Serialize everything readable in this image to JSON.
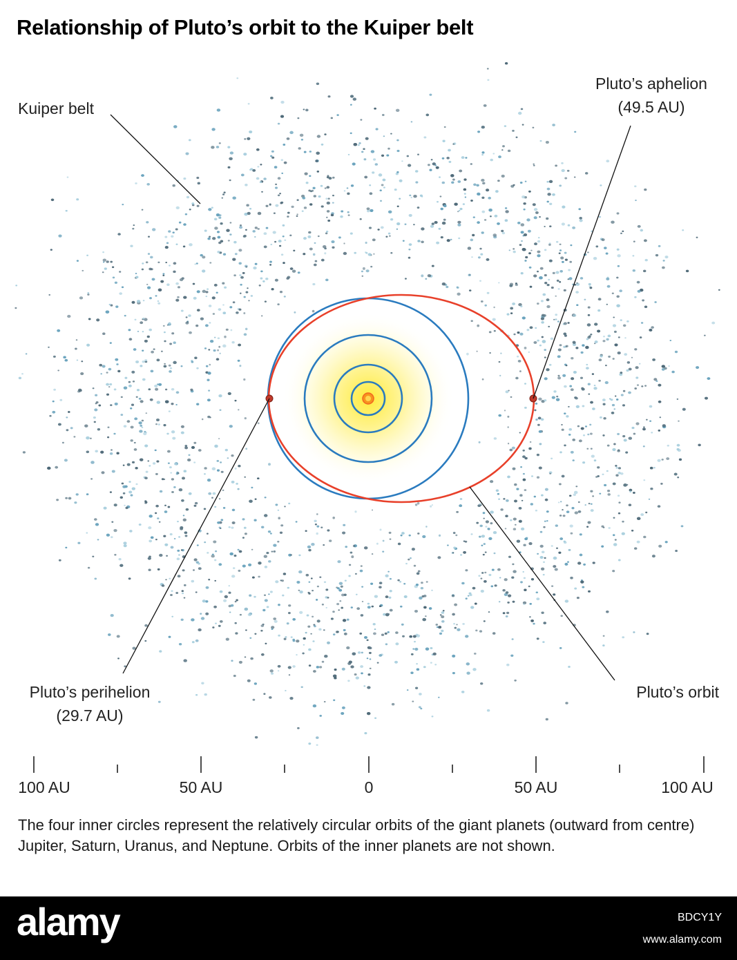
{
  "title": "Relationship of Pluto’s orbit to the Kuiper belt",
  "labels": {
    "kuiper_belt": "Kuiper belt",
    "aphelion_line1": "Pluto’s aphelion",
    "aphelion_line2": "(49.5 AU)",
    "perihelion_line1": "Pluto’s perihelion",
    "perihelion_line2": "(29.7 AU)",
    "orbit": "Pluto’s orbit"
  },
  "scale": {
    "left_100": "100 AU",
    "left_50": "50 AU",
    "zero": "0",
    "right_50": "50 AU",
    "right_100": "100 AU"
  },
  "caption": "The four inner circles represent the relatively circular orbits of the giant planets (outward from centre) Jupiter, Saturn, Uranus, and Neptune. Orbits of the inner planets are not shown.",
  "footer": {
    "brand": "alamy",
    "image_id": "BDCY1Y",
    "site": "www.alamy.com"
  },
  "colors": {
    "planet_orbits": "#2a7bbf",
    "pluto_orbit": "#e8402a",
    "kuiper_dots": [
      "#5f7a88",
      "#6aa3bd",
      "#a9cfde",
      "#4d6877"
    ],
    "sun_glow": "#fff27a",
    "sun_core": "#f5a623"
  }
}
